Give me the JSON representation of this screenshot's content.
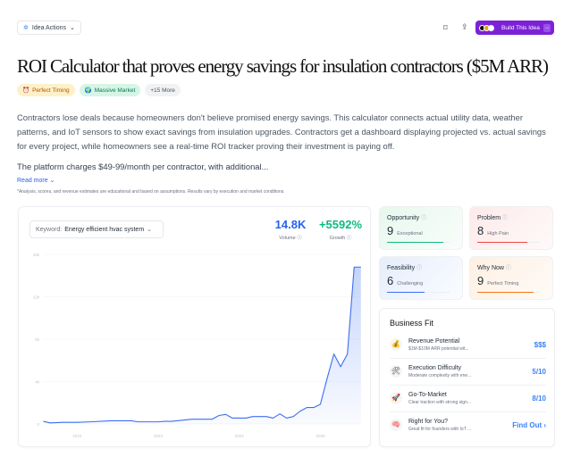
{
  "header": {
    "idea_actions": "Idea Actions",
    "build_label": "Build This Idea"
  },
  "title": "ROI Calculator that proves energy savings for insulation contractors ($5M ARR)",
  "tags": [
    {
      "icon": "⏰",
      "label": "Perfect Timing"
    },
    {
      "icon": "🌍",
      "label": "Massive Market"
    },
    {
      "label": "+15 More"
    }
  ],
  "description": "Contractors lose deals because homeowners don't believe promised energy savings. This calculator connects actual utility data, weather patterns, and IoT sensors to show exact savings from insulation upgrades. Contractors get a dashboard displaying projected vs. actual savings for every project, while homeowners see a real-time ROI tracker proving their investment is paying off.",
  "description2": "The platform charges $49-99/month per contractor, with additional...",
  "read_more": "Read more",
  "disclaimer": "*Analysis, scores, and revenue estimates are educational and based on assumptions. Results vary by execution and market conditions.",
  "trend": {
    "keyword_label": "Keyword:",
    "keyword": "Energy efficient hvac system",
    "volume": "14.8K",
    "volume_label": "Volume",
    "growth": "+5592%",
    "growth_label": "Growth"
  },
  "chart_data": {
    "type": "area",
    "ylim": [
      0,
      16000
    ],
    "y_ticks": [
      "0",
      "4k",
      "8k",
      "12k",
      "16k"
    ],
    "y_tick_values": [
      0,
      4000,
      8000,
      12000,
      16000
    ],
    "x_ticks": [
      "2022",
      "2023",
      "2024",
      "2025"
    ],
    "grid": true,
    "color": "#3b6ff0",
    "x": [
      "2021-08",
      "2021-09",
      "2021-11",
      "2022-01",
      "2022-03",
      "2022-06",
      "2022-09",
      "2022-10",
      "2023-01",
      "2023-02",
      "2023-03",
      "2023-06",
      "2023-09",
      "2023-10",
      "2023-11",
      "2023-12",
      "2024-02",
      "2024-03",
      "2024-05",
      "2024-06",
      "2024-07",
      "2024-08",
      "2024-09",
      "2024-10",
      "2024-11",
      "2024-12",
      "2025-01",
      "2025-02",
      "2025-03",
      "2025-04",
      "2025-05",
      "2025-06",
      "2025-07"
    ],
    "values": [
      250,
      100,
      150,
      150,
      200,
      300,
      300,
      200,
      200,
      250,
      250,
      450,
      450,
      800,
      900,
      550,
      550,
      700,
      700,
      550,
      950,
      550,
      700,
      1200,
      1550,
      1550,
      1850,
      4300,
      6600,
      5400,
      6600,
      14800,
      14800
    ]
  },
  "scores": [
    {
      "title": "Opportunity",
      "score": "9",
      "label": "Exceptional",
      "value": 9,
      "color": "#10b981",
      "bg": "linear-gradient(135deg,#e6f8ee,#f9fdfb)"
    },
    {
      "title": "Problem",
      "score": "8",
      "label": "High Pain",
      "value": 8,
      "color": "#ef4444",
      "bg": "linear-gradient(135deg,#fdeaea,#fff9f9)"
    },
    {
      "title": "Feasibility",
      "score": "6",
      "label": "Challenging",
      "value": 6,
      "color": "#3b6ff0",
      "bg": "linear-gradient(135deg,#e6eefc,#fafcff)"
    },
    {
      "title": "Why Now",
      "score": "9",
      "label": "Perfect Timing",
      "value": 9,
      "color": "#f97316",
      "bg": "linear-gradient(135deg,#fdf0e2,#fffbf7)"
    }
  ],
  "business_fit": {
    "title": "Business Fit",
    "rows": [
      {
        "icon": "💰",
        "title": "Revenue Potential",
        "sub": "$1M-$10M ARR potential wit...",
        "value": "$$$"
      },
      {
        "icon": "🛠",
        "title": "Execution Difficulty",
        "sub": "Moderate complexity with ene...",
        "value": "5/10"
      },
      {
        "icon": "🚀",
        "title": "Go-To-Market",
        "sub": "Clear traction with strong sign...",
        "value": "8/10"
      },
      {
        "icon": "🧠",
        "title": "Right for You?",
        "sub": "Great fit for founders with IoT ...",
        "value": "Find Out ›"
      }
    ]
  }
}
